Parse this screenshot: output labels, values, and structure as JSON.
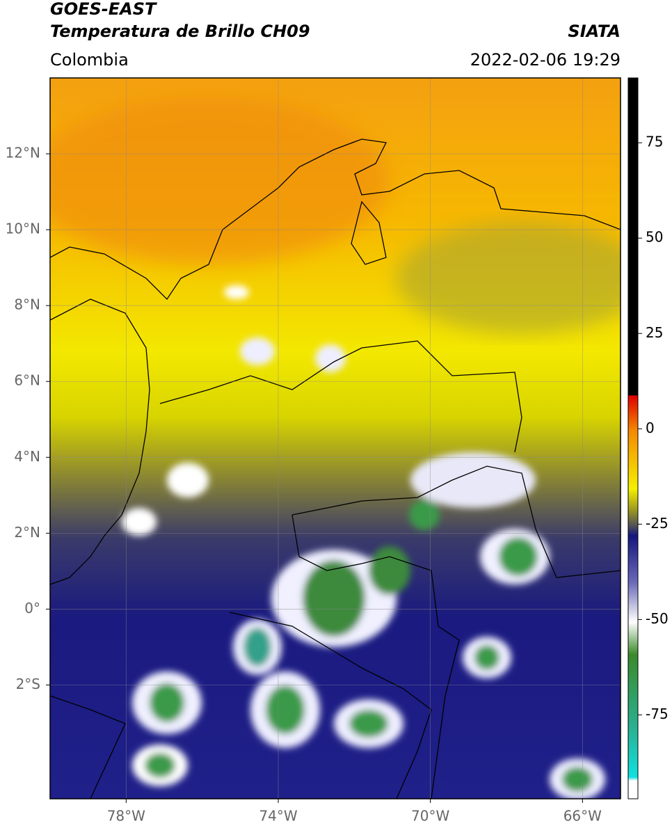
{
  "header": {
    "title": "GOES-EAST",
    "subtitle": "Temperatura de Brillo CH09",
    "source": "SIATA",
    "region": "Colombia",
    "datetime": "2022-02-06 19:29"
  },
  "map": {
    "xlim": [
      -80,
      -65
    ],
    "ylim": [
      -5,
      14
    ],
    "grid": true,
    "xticks": [
      {
        "value": -78,
        "label": "78°W"
      },
      {
        "value": -74,
        "label": "74°W"
      },
      {
        "value": -70,
        "label": "70°W"
      },
      {
        "value": -66,
        "label": "66°W"
      }
    ],
    "yticks": [
      {
        "value": 12,
        "label": "12°N"
      },
      {
        "value": 10,
        "label": "10°N"
      },
      {
        "value": 8,
        "label": "8°N"
      },
      {
        "value": 6,
        "label": "6°N"
      },
      {
        "value": 4,
        "label": "4°N"
      },
      {
        "value": 2,
        "label": "2°N"
      },
      {
        "value": 0,
        "label": "0°"
      },
      {
        "value": -2,
        "label": "2°S"
      }
    ]
  },
  "colorbar": {
    "lim": [
      -97,
      92
    ],
    "ticks": [
      75,
      50,
      25,
      0,
      -25,
      -50,
      -75
    ]
  }
}
